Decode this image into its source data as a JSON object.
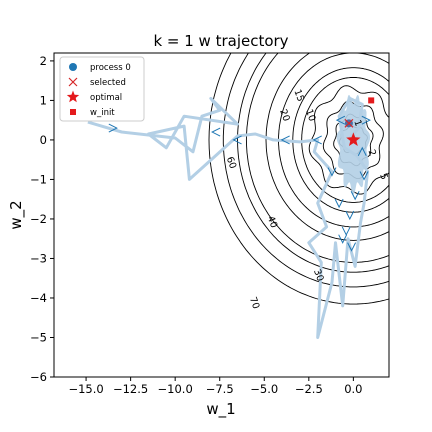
{
  "chart_data": {
    "type": "contour-trajectory",
    "title": "k = 1 w trajectory",
    "xlabel": "w_1",
    "ylabel": "w_2",
    "xlim": [
      -16.8,
      2.0
    ],
    "ylim": [
      -6.0,
      2.2
    ],
    "xticks": [
      -15.0,
      -12.5,
      -10.0,
      -7.5,
      -5.0,
      -2.5,
      0.0
    ],
    "xtick_labels": [
      "−15.0",
      "−12.5",
      "−10.0",
      "−7.5",
      "−5.0",
      "−2.5",
      "0.0"
    ],
    "yticks": [
      -6,
      -5,
      -4,
      -3,
      -2,
      -1,
      0,
      1,
      2
    ],
    "ytick_labels": [
      "−6",
      "−5",
      "−4",
      "−3",
      "−2",
      "−1",
      "0",
      "1",
      "2"
    ],
    "grid": false,
    "legend_position": "top-left",
    "legend": [
      {
        "label": "process 0",
        "marker": "circle",
        "color": "#1f77b4"
      },
      {
        "label": "selected",
        "marker": "x",
        "color": "#d62728"
      },
      {
        "label": "optimal",
        "marker": "star",
        "color": "#e41a1c"
      },
      {
        "label": "w_init",
        "marker": "square",
        "color": "#e41a1c"
      }
    ],
    "colors": {
      "trajectory": "#b3cfe5",
      "arrows": "#1f77b4",
      "contours": "#000000",
      "optimal": "#e41a1c",
      "selected": "#d62728",
      "process": "#4a6fa5"
    },
    "contours": [
      {
        "level": "1",
        "ax": 0.75,
        "bx": 0.55
      },
      {
        "level": "2",
        "ax": 1.05,
        "bx": 1.0
      },
      {
        "level": "5",
        "ax": 1.6,
        "bx": 1.5
      },
      {
        "level": "10",
        "ax": 2.35,
        "bx": 2.1
      },
      {
        "level": "15",
        "ax": 2.9,
        "bx": 2.55
      },
      {
        "level": "20",
        "ax": 3.4,
        "bx": 2.95
      },
      {
        "level": "30",
        "ax": 4.2,
        "bx": 3.55
      },
      {
        "level": "40",
        "ax": 4.9,
        "bx": 4.1
      },
      {
        "level": "60",
        "ax": 6.0,
        "bx": 5.0
      },
      {
        "level": "70",
        "ax": 6.5,
        "bx": 5.4
      },
      {
        "level": "",
        "ax": 7.3,
        "bx": 6.0
      },
      {
        "level": "",
        "ax": 8.1,
        "bx": 6.7
      }
    ],
    "contour_labels": [
      {
        "text": "1",
        "x": 0.1,
        "y": 0.4
      },
      {
        "text": "2",
        "x": 0.9,
        "y": -0.35
      },
      {
        "text": "5",
        "x": 1.55,
        "y": -0.95
      },
      {
        "text": "10",
        "x": -2.55,
        "y": 0.6
      },
      {
        "text": "15",
        "x": -3.2,
        "y": 1.1
      },
      {
        "text": "20",
        "x": -4.0,
        "y": 0.6
      },
      {
        "text": "30",
        "x": -2.1,
        "y": -3.45
      },
      {
        "text": "40",
        "x": -4.7,
        "y": -2.1
      },
      {
        "text": "60",
        "x": -7.0,
        "y": -0.6
      },
      {
        "text": "70",
        "x": -5.7,
        "y": -4.15
      }
    ],
    "optimal": {
      "x": 0.0,
      "y": 0.0
    },
    "w_init": {
      "x": 1.0,
      "y": 1.0
    },
    "selected": {
      "x": -0.25,
      "y": 0.42
    },
    "trajectory": [
      [
        -14.9,
        0.45
      ],
      [
        -13.0,
        0.2
      ],
      [
        -10.0,
        0.05
      ],
      [
        -9.0,
        -0.3
      ],
      [
        -8.5,
        0.6
      ],
      [
        -7.5,
        0.75
      ],
      [
        -8.0,
        1.05
      ],
      [
        -6.5,
        0.4
      ],
      [
        -9.5,
        0.6
      ],
      [
        -10.5,
        -0.2
      ],
      [
        -11.5,
        0.15
      ],
      [
        -9.5,
        0.35
      ],
      [
        -9.2,
        -1.0
      ],
      [
        -6.5,
        0.1
      ],
      [
        -5.5,
        0.15
      ],
      [
        -4.5,
        0.0
      ],
      [
        -3.0,
        -0.05
      ],
      [
        -2.0,
        0.0
      ],
      [
        -2.2,
        -0.3
      ],
      [
        -1.2,
        -0.8
      ],
      [
        -2.0,
        -1.6
      ],
      [
        -1.5,
        -2.2
      ],
      [
        -2.5,
        -2.6
      ],
      [
        -1.8,
        -3.1
      ],
      [
        -2.0,
        -5.0
      ],
      [
        -1.2,
        -3.6
      ],
      [
        -1.0,
        -2.6
      ],
      [
        -0.6,
        -4.2
      ],
      [
        -0.3,
        -2.5
      ],
      [
        0.1,
        -3.2
      ],
      [
        0.4,
        -2.1
      ],
      [
        0.6,
        -1.6
      ],
      [
        0.8,
        -0.8
      ],
      [
        0.2,
        -0.4
      ],
      [
        -0.5,
        -0.2
      ],
      [
        -0.8,
        0.6
      ],
      [
        -0.2,
        1.05
      ],
      [
        0.5,
        0.9
      ],
      [
        0.3,
        0.3
      ],
      [
        -0.2,
        0.05
      ],
      [
        0.0,
        0.0
      ]
    ],
    "arrows": [
      {
        "x": -13.5,
        "y": 0.3,
        "dir": "right"
      },
      {
        "x": -7.7,
        "y": 0.2,
        "dir": "left"
      },
      {
        "x": -6.5,
        "y": 0.0,
        "dir": "left"
      },
      {
        "x": -3.8,
        "y": 0.0,
        "dir": "left"
      },
      {
        "x": -2.0,
        "y": 0.0,
        "dir": "left"
      },
      {
        "x": -1.2,
        "y": -0.8,
        "dir": "down"
      },
      {
        "x": -0.8,
        "y": -1.6,
        "dir": "down"
      },
      {
        "x": -0.2,
        "y": -1.9,
        "dir": "down"
      },
      {
        "x": -0.4,
        "y": -2.3,
        "dir": "down"
      },
      {
        "x": -0.1,
        "y": -2.7,
        "dir": "down"
      },
      {
        "x": -0.6,
        "y": -2.5,
        "dir": "down"
      },
      {
        "x": 0.1,
        "y": -1.4,
        "dir": "down"
      },
      {
        "x": 0.6,
        "y": -0.9,
        "dir": "down"
      },
      {
        "x": -0.7,
        "y": 0.5,
        "dir": "left"
      },
      {
        "x": 0.7,
        "y": 0.5,
        "dir": "right"
      },
      {
        "x": 0.5,
        "y": -0.3,
        "dir": "up"
      }
    ]
  }
}
